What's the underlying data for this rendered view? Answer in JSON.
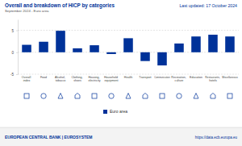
{
  "chart_data": {
    "type": "bar",
    "title": "Overall and breakdown of HICP by categories",
    "subtitle": "September 2024 - Euro area",
    "categories": [
      "Overall index",
      "Food",
      "Alcohol, tobacco",
      "Clothing, shoes",
      "Housing, electricity",
      "Household equipment",
      "Health",
      "Transport",
      "Communication",
      "Recreation, culture",
      "Education",
      "Restaurants, hotels",
      "Miscellaneous"
    ],
    "series": [
      {
        "name": "Euro area",
        "color": "#003299",
        "values": [
          1.7,
          2.4,
          4.9,
          0.9,
          1.6,
          -0.4,
          3.2,
          -2.0,
          -3.0,
          2.0,
          3.6,
          4.0,
          3.6
        ]
      }
    ],
    "ylim": [
      -5,
      7.5
    ],
    "yticks": [
      -5,
      0,
      5
    ],
    "grid": true,
    "legend": "bottom"
  },
  "page": {
    "updated": "Last updated: 17 October 2024",
    "footer_left": "EUROPEAN CENTRAL BANK | EUROSYSTEM",
    "footer_right": "https://data.ecb.europa.eu"
  }
}
